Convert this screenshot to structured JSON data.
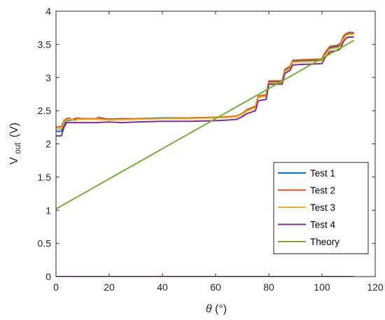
{
  "chart_data": {
    "type": "line",
    "xlabel": "θ (°)",
    "ylabel": "V_out (V)",
    "xlabel_parts": {
      "symbol": "θ",
      "unit": "(°)"
    },
    "ylabel_parts": {
      "base": "V",
      "sub": "out",
      "unit": "(V)"
    },
    "xlim": [
      0,
      120
    ],
    "ylim": [
      0,
      4
    ],
    "xticks": [
      0,
      20,
      40,
      60,
      80,
      100,
      120
    ],
    "yticks": [
      0,
      0.5,
      1,
      1.5,
      2,
      2.5,
      3,
      3.5,
      4
    ],
    "xtick_labels": [
      "0",
      "20",
      "40",
      "60",
      "80",
      "100",
      "120"
    ],
    "ytick_labels": [
      "0",
      "0.5",
      "1",
      "1.5",
      "2",
      "2.5",
      "3",
      "3.5",
      "4"
    ],
    "grid": false,
    "legend_position": "bottom-right",
    "series": [
      {
        "name": "Test 1",
        "color": "#0072BD",
        "x": [
          0,
          2,
          3,
          4,
          8,
          15,
          25,
          30,
          40,
          50,
          60,
          65,
          68,
          70,
          72,
          75,
          76,
          79,
          80,
          85,
          86,
          88,
          89,
          94,
          95,
          100,
          101,
          102,
          103,
          106,
          107,
          108,
          109,
          110,
          112
        ],
        "y": [
          2.19,
          2.19,
          2.3,
          2.35,
          2.37,
          2.37,
          2.38,
          2.38,
          2.39,
          2.39,
          2.4,
          2.4,
          2.42,
          2.45,
          2.5,
          2.55,
          2.7,
          2.72,
          2.93,
          2.93,
          3.1,
          3.15,
          3.24,
          3.25,
          3.25,
          3.27,
          3.35,
          3.4,
          3.45,
          3.47,
          3.5,
          3.6,
          3.65,
          3.67,
          3.67
        ]
      },
      {
        "name": "Test 2",
        "color": "#D95319",
        "x": [
          0,
          2,
          3,
          4,
          5,
          6,
          7,
          8,
          10,
          15,
          16,
          20,
          30,
          40,
          50,
          60,
          65,
          68,
          70,
          72,
          75,
          76,
          79,
          80,
          85,
          86,
          88,
          89,
          94,
          95,
          100,
          101,
          102,
          103,
          106,
          107,
          108,
          109,
          110,
          112
        ],
        "y": [
          2.25,
          2.26,
          2.35,
          2.38,
          2.39,
          2.36,
          2.38,
          2.39,
          2.38,
          2.38,
          2.4,
          2.37,
          2.38,
          2.38,
          2.39,
          2.4,
          2.41,
          2.42,
          2.46,
          2.52,
          2.57,
          2.72,
          2.74,
          2.95,
          2.95,
          3.12,
          3.17,
          3.26,
          3.27,
          3.27,
          3.28,
          3.37,
          3.42,
          3.47,
          3.49,
          3.52,
          3.62,
          3.66,
          3.68,
          3.68
        ]
      },
      {
        "name": "Test 3",
        "color": "#EDB120",
        "x": [
          0,
          2,
          3,
          4,
          6,
          7,
          8,
          10,
          15,
          20,
          30,
          40,
          50,
          60,
          65,
          68,
          70,
          72,
          75,
          76,
          79,
          80,
          85,
          86,
          88,
          89,
          94,
          95,
          100,
          101,
          102,
          103,
          106,
          107,
          108,
          109,
          110,
          112
        ],
        "y": [
          2.22,
          2.23,
          2.33,
          2.36,
          2.37,
          2.35,
          2.37,
          2.37,
          2.37,
          2.36,
          2.37,
          2.38,
          2.38,
          2.39,
          2.4,
          2.41,
          2.45,
          2.5,
          2.55,
          2.7,
          2.72,
          2.92,
          2.92,
          3.09,
          3.14,
          3.23,
          3.24,
          3.24,
          3.25,
          3.33,
          3.38,
          3.43,
          3.45,
          3.48,
          3.58,
          3.63,
          3.65,
          3.65
        ]
      },
      {
        "name": "Test 4",
        "color": "#7E2F8E",
        "x": [
          0,
          2,
          3,
          4,
          8,
          15,
          20,
          25,
          30,
          40,
          50,
          60,
          65,
          68,
          70,
          72,
          75,
          76,
          79,
          80,
          85,
          86,
          88,
          89,
          94,
          95,
          100,
          101,
          102,
          103,
          106,
          107,
          108,
          109,
          110,
          112
        ],
        "y": [
          2.12,
          2.12,
          2.25,
          2.32,
          2.32,
          2.32,
          2.33,
          2.32,
          2.33,
          2.34,
          2.34,
          2.35,
          2.36,
          2.37,
          2.41,
          2.46,
          2.5,
          2.65,
          2.67,
          2.9,
          2.9,
          3.06,
          3.11,
          3.19,
          3.2,
          3.2,
          3.21,
          3.29,
          3.34,
          3.39,
          3.41,
          3.44,
          3.54,
          3.59,
          3.61,
          3.61
        ]
      },
      {
        "name": "Theory",
        "color": "#77AC30",
        "x": [
          0,
          112
        ],
        "y": [
          1.02,
          3.56
        ]
      }
    ],
    "baseline": {
      "color": "#7E2F8E",
      "x": [
        0,
        112
      ],
      "y": [
        0,
        0
      ]
    }
  }
}
